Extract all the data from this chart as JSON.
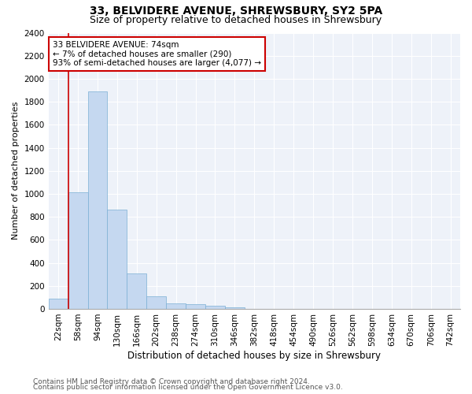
{
  "title1": "33, BELVIDERE AVENUE, SHREWSBURY, SY2 5PA",
  "title2": "Size of property relative to detached houses in Shrewsbury",
  "xlabel": "Distribution of detached houses by size in Shrewsbury",
  "ylabel": "Number of detached properties",
  "bin_labels": [
    "22sqm",
    "58sqm",
    "94sqm",
    "130sqm",
    "166sqm",
    "202sqm",
    "238sqm",
    "274sqm",
    "310sqm",
    "346sqm",
    "382sqm",
    "418sqm",
    "454sqm",
    "490sqm",
    "526sqm",
    "562sqm",
    "598sqm",
    "634sqm",
    "670sqm",
    "706sqm",
    "742sqm"
  ],
  "bar_values": [
    90,
    1010,
    1890,
    860,
    310,
    110,
    50,
    40,
    25,
    15,
    0,
    0,
    0,
    0,
    0,
    0,
    0,
    0,
    0,
    0,
    0
  ],
  "bar_color": "#c5d8f0",
  "bar_edge_color": "#7bafd4",
  "vline_color": "#cc0000",
  "vline_bin_index": 1,
  "annotation_text": "33 BELVIDERE AVENUE: 74sqm\n← 7% of detached houses are smaller (290)\n93% of semi-detached houses are larger (4,077) →",
  "annotation_box_color": "#cc0000",
  "ylim": [
    0,
    2400
  ],
  "yticks": [
    0,
    200,
    400,
    600,
    800,
    1000,
    1200,
    1400,
    1600,
    1800,
    2000,
    2200,
    2400
  ],
  "footer1": "Contains HM Land Registry data © Crown copyright and database right 2024.",
  "footer2": "Contains public sector information licensed under the Open Government Licence v3.0.",
  "background_color": "#eef2f9",
  "grid_color": "#ffffff",
  "title1_fontsize": 10,
  "title2_fontsize": 9,
  "xlabel_fontsize": 8.5,
  "ylabel_fontsize": 8,
  "tick_fontsize": 7.5,
  "footer_fontsize": 6.5,
  "annotation_fontsize": 7.5
}
